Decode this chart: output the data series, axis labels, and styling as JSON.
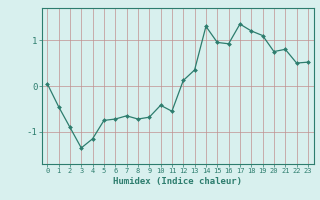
{
  "x": [
    0,
    1,
    2,
    3,
    4,
    5,
    6,
    7,
    8,
    9,
    10,
    11,
    12,
    13,
    14,
    15,
    16,
    17,
    18,
    19,
    20,
    21,
    22,
    23
  ],
  "y": [
    0.05,
    -0.45,
    -0.9,
    -1.35,
    -1.15,
    -0.75,
    -0.72,
    -0.65,
    -0.72,
    -0.68,
    -0.42,
    -0.55,
    0.12,
    0.35,
    1.3,
    0.95,
    0.92,
    1.35,
    1.2,
    1.1,
    0.75,
    0.8,
    0.5,
    0.52
  ],
  "line_color": "#2d7d6e",
  "marker": "D",
  "marker_size": 2.0,
  "bg_color": "#d8f0ee",
  "grid_color": "#c09090",
  "xlabel": "Humidex (Indice chaleur)",
  "ylim": [
    -1.7,
    1.7
  ],
  "yticks": [
    -1,
    0,
    1
  ],
  "xlim": [
    -0.5,
    23.5
  ],
  "xticks": [
    0,
    1,
    2,
    3,
    4,
    5,
    6,
    7,
    8,
    9,
    10,
    11,
    12,
    13,
    14,
    15,
    16,
    17,
    18,
    19,
    20,
    21,
    22,
    23
  ]
}
